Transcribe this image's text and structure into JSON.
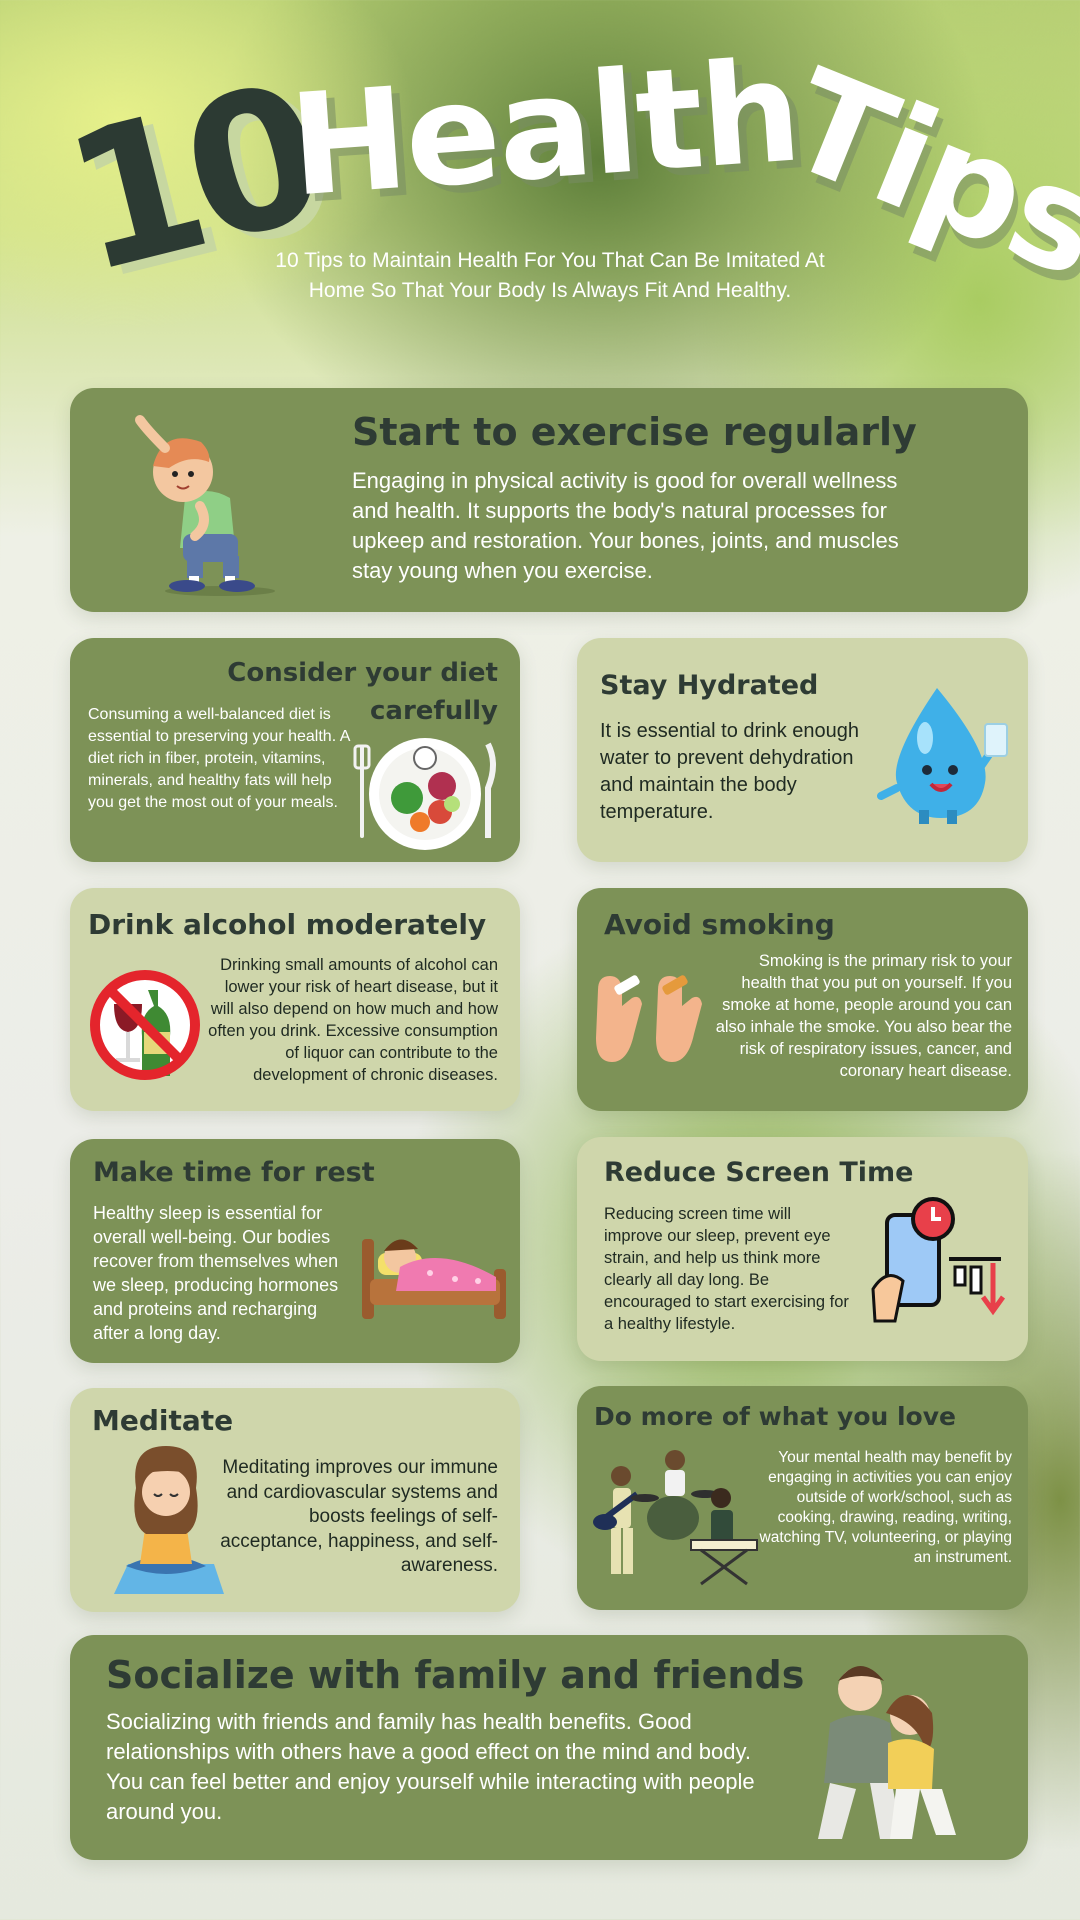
{
  "title": {
    "number": "10",
    "word1": "Health",
    "word2": "Tips"
  },
  "subtitle": "10 Tips to Maintain Health For You That Can Be Imitated At Home So That Your Body Is Always Fit And Healthy.",
  "tips": [
    {
      "heading": "Start to exercise regularly",
      "body": "Engaging in physical activity is good for overall wellness and health. It supports the body's natural processes for upkeep and restoration. Your bones, joints, and muscles stay young when you exercise.",
      "icon": "exercising-boy-icon"
    },
    {
      "heading": "Consider your diet carefully",
      "body": "Consuming a well-balanced diet is essential to preserving your health. A diet rich in fiber, protein, vitamins, minerals, and healthy fats will help you get the most out of your meals.",
      "icon": "diet-plate-icon"
    },
    {
      "heading": "Stay Hydrated",
      "body": "It is essential to drink enough water to prevent dehydration and maintain the body temperature.",
      "icon": "water-drop-icon"
    },
    {
      "heading": "Drink alcohol moderately",
      "body": "Drinking small amounts of alcohol can lower your risk of heart disease, but it will also depend on how much and how often you drink. Excessive consumption of liquor can contribute to the development of chronic diseases.",
      "icon": "no-alcohol-icon"
    },
    {
      "heading": "Avoid smoking",
      "body": "Smoking is the primary risk to your health that you put on yourself. If you smoke at home, people around you can also inhale the smoke. You also bear the risk of respiratory issues, cancer, and coronary heart disease.",
      "icon": "broken-cigarette-icon"
    },
    {
      "heading": "Make time for rest",
      "body": "Healthy sleep is essential for overall well-being. Our bodies recover from themselves when we sleep, producing hormones and proteins and recharging after a long day.",
      "icon": "sleeping-child-icon"
    },
    {
      "heading": "Reduce Screen Time",
      "body": "Reducing screen time will improve our sleep, prevent eye strain, and help us think more clearly all day long. Be encouraged to start exercising for a healthy lifestyle.",
      "icon": "phone-clock-icon"
    },
    {
      "heading": "Meditate",
      "body": "Meditating improves our immune and cardiovascular systems and boosts feelings of self-acceptance, happiness, and self-awareness.",
      "icon": "meditating-girl-icon"
    },
    {
      "heading": "Do more of what you love",
      "body": "Your mental health may benefit by engaging in activities you can enjoy outside of work/school, such as cooking, drawing, reading, writing, watching TV, volunteering, or playing an instrument.",
      "icon": "band-musicians-icon"
    },
    {
      "heading": "Socialize with family and friends",
      "body": "Socializing with friends and family has health benefits. Good relationships with others have a good effect on the mind and body. You can feel better and enjoy yourself while interacting with people around you.",
      "icon": "couple-friends-icon"
    }
  ],
  "colors": {
    "dark_card": "#7d9257",
    "light_card": "#cfd6ab",
    "heading": "#2e3b34"
  }
}
